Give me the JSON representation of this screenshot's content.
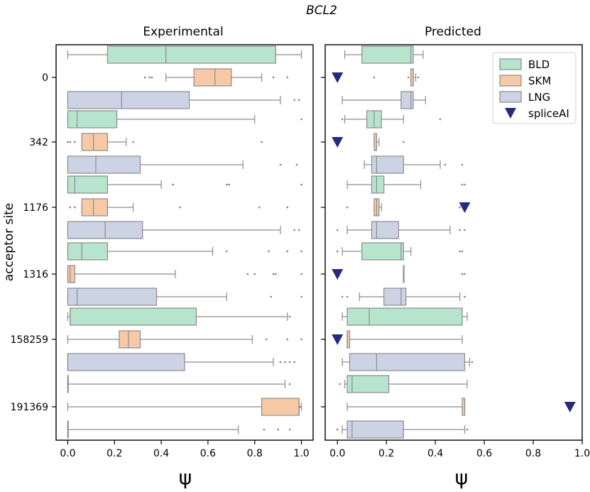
{
  "chart_data": {
    "type": "boxplot",
    "title": "BCL2",
    "ylabel": "acceptor site",
    "categories": [
      "0",
      "342",
      "1176",
      "1316",
      "158259",
      "191369"
    ],
    "legend": {
      "position": "top-right",
      "entries": [
        {
          "name": "BLD",
          "color": "#b7e4cc",
          "marker": "box"
        },
        {
          "name": "SKM",
          "color": "#f7c9a6",
          "marker": "box"
        },
        {
          "name": "LNG",
          "color": "#ccd3e4",
          "marker": "box"
        },
        {
          "name": "spliceAI",
          "color": "#262a80",
          "marker": "triangle-down"
        }
      ]
    },
    "panels": [
      {
        "name": "Experimental",
        "xlabel": "ψ",
        "xlim": [
          -0.05,
          1.05
        ],
        "xticks": [
          0.0,
          0.2,
          0.4,
          0.6,
          0.8,
          1.0
        ],
        "xtick_labels": [
          "0.0",
          "0.2",
          "0.4",
          "0.6",
          "0.8",
          "1.0"
        ],
        "groups": [
          {
            "site": "0",
            "boxes": [
              {
                "series": "BLD",
                "whisker_low": 0.0,
                "q1": 0.17,
                "median": 0.42,
                "q3": 0.89,
                "whisker_high": 1.0,
                "outliers": []
              },
              {
                "series": "SKM",
                "whisker_low": 0.42,
                "q1": 0.54,
                "median": 0.63,
                "q3": 0.7,
                "whisker_high": 0.83,
                "outliers": [
                  0.33,
                  0.35,
                  0.36,
                  0.88,
                  0.94
                ]
              },
              {
                "series": "LNG",
                "whisker_low": 0.0,
                "q1": 0.0,
                "median": 0.23,
                "q3": 0.52,
                "whisker_high": 0.91,
                "outliers": [
                  0.97,
                  0.99
                ]
              }
            ]
          },
          {
            "site": "342",
            "boxes": [
              {
                "series": "BLD",
                "whisker_low": 0.0,
                "q1": 0.0,
                "median": 0.04,
                "q3": 0.21,
                "whisker_high": 0.8,
                "outliers": [
                  1.0
                ]
              },
              {
                "series": "SKM",
                "whisker_low": 0.06,
                "q1": 0.06,
                "median": 0.11,
                "q3": 0.17,
                "whisker_high": 0.25,
                "outliers": [
                  0.0,
                  0.01,
                  0.03,
                  0.28,
                  0.83
                ]
              },
              {
                "series": "LNG",
                "whisker_low": 0.0,
                "q1": 0.0,
                "median": 0.12,
                "q3": 0.31,
                "whisker_high": 0.75,
                "outliers": [
                  0.91,
                  0.98
                ]
              }
            ]
          },
          {
            "site": "1176",
            "boxes": [
              {
                "series": "BLD",
                "whisker_low": 0.0,
                "q1": 0.0,
                "median": 0.03,
                "q3": 0.17,
                "whisker_high": 0.4,
                "outliers": [
                  0.45,
                  0.68,
                  0.69,
                  1.0
                ]
              },
              {
                "series": "SKM",
                "whisker_low": 0.06,
                "q1": 0.06,
                "median": 0.11,
                "q3": 0.17,
                "whisker_high": 0.28,
                "outliers": [
                  0.01,
                  0.03,
                  0.48,
                  0.82,
                  0.94
                ]
              },
              {
                "series": "LNG",
                "whisker_low": 0.0,
                "q1": 0.0,
                "median": 0.16,
                "q3": 0.32,
                "whisker_high": 0.91,
                "outliers": [
                  0.97,
                  0.99
                ]
              }
            ]
          },
          {
            "site": "1316",
            "boxes": [
              {
                "series": "BLD",
                "whisker_low": 0.0,
                "q1": 0.0,
                "median": 0.06,
                "q3": 0.17,
                "whisker_high": 0.62,
                "outliers": [
                  0.68,
                  0.86,
                  0.94,
                  1.0
                ]
              },
              {
                "series": "SKM",
                "whisker_low": 0.0,
                "q1": 0.0,
                "median": 0.01,
                "q3": 0.03,
                "whisker_high": 0.46,
                "outliers": [
                  0.77,
                  0.8,
                  0.88,
                  0.89,
                  1.0
                ]
              },
              {
                "series": "LNG",
                "whisker_low": 0.0,
                "q1": 0.0,
                "median": 0.04,
                "q3": 0.38,
                "whisker_high": 0.68,
                "outliers": [
                  0.87,
                  1.0
                ]
              }
            ]
          },
          {
            "site": "158259",
            "boxes": [
              {
                "series": "BLD",
                "whisker_low": 0.0,
                "q1": 0.01,
                "median": 0.01,
                "q3": 0.55,
                "whisker_high": 0.94,
                "outliers": [
                  0.95
                ]
              },
              {
                "series": "SKM",
                "whisker_low": 0.0,
                "q1": 0.22,
                "median": 0.26,
                "q3": 0.31,
                "whisker_high": 0.79,
                "outliers": [
                  0.85,
                  0.94,
                  1.0
                ]
              },
              {
                "series": "LNG",
                "whisker_low": 0.0,
                "q1": 0.0,
                "median": 0.0,
                "q3": 0.5,
                "whisker_high": 0.88,
                "outliers": [
                  0.91,
                  0.93,
                  0.95,
                  0.97
                ]
              }
            ]
          },
          {
            "site": "191369",
            "boxes": [
              {
                "series": "BLD",
                "whisker_low": 0.0,
                "q1": 0.0,
                "median": 0.0,
                "q3": 0.0,
                "whisker_high": 0.93,
                "outliers": [
                  0.95
                ]
              },
              {
                "series": "SKM",
                "whisker_low": 0.0,
                "q1": 0.83,
                "median": 0.99,
                "q3": 0.99,
                "whisker_high": 1.0,
                "outliers": [
                  0.995
                ]
              },
              {
                "series": "LNG",
                "whisker_low": 0.0,
                "q1": 0.0,
                "median": 0.0,
                "q3": 0.0,
                "whisker_high": 0.73,
                "outliers": [
                  0.84,
                  0.9,
                  0.95
                ]
              }
            ]
          }
        ]
      },
      {
        "name": "Predicted",
        "xlabel": "ψ",
        "xlim": [
          -0.05,
          1.0
        ],
        "xticks": [
          0.0,
          0.2,
          0.4,
          0.6,
          0.8,
          1.0
        ],
        "xtick_labels": [
          "0.0",
          "0.2",
          "0.4",
          "0.6",
          "0.8",
          "1.0"
        ],
        "groups": [
          {
            "site": "0",
            "spliceAI": 0.0,
            "boxes": [
              {
                "series": "BLD",
                "whisker_low": 0.03,
                "q1": 0.1,
                "median": 0.3,
                "q3": 0.31,
                "whisker_high": 0.35,
                "outliers": []
              },
              {
                "series": "SKM",
                "whisker_low": 0.3,
                "q1": 0.3,
                "median": 0.31,
                "q3": 0.31,
                "whisker_high": 0.32,
                "outliers": [
                  0.15,
                  0.29,
                  0.33
                ]
              },
              {
                "series": "LNG",
                "whisker_low": 0.02,
                "q1": 0.26,
                "median": 0.3,
                "q3": 0.31,
                "whisker_high": 0.36,
                "outliers": []
              }
            ]
          },
          {
            "site": "342",
            "spliceAI": 0.0,
            "boxes": [
              {
                "series": "BLD",
                "whisker_low": 0.03,
                "q1": 0.12,
                "median": 0.15,
                "q3": 0.18,
                "whisker_high": 0.27,
                "outliers": [
                  0.02,
                  0.42
                ]
              },
              {
                "series": "SKM",
                "whisker_low": 0.15,
                "q1": 0.15,
                "median": 0.16,
                "q3": 0.16,
                "whisker_high": 0.17,
                "outliers": [
                  0.27
                ]
              },
              {
                "series": "LNG",
                "whisker_low": 0.11,
                "q1": 0.14,
                "median": 0.16,
                "q3": 0.27,
                "whisker_high": 0.42,
                "outliers": [
                  0.44,
                  0.51
                ]
              }
            ]
          },
          {
            "site": "1176",
            "spliceAI": 0.52,
            "boxes": [
              {
                "series": "BLD",
                "whisker_low": 0.04,
                "q1": 0.14,
                "median": 0.16,
                "q3": 0.19,
                "whisker_high": 0.34,
                "outliers": [
                  0.51,
                  0.52
                ]
              },
              {
                "series": "SKM",
                "whisker_low": 0.15,
                "q1": 0.15,
                "median": 0.16,
                "q3": 0.17,
                "whisker_high": 0.18,
                "outliers": [
                  0.04,
                  0.5,
                  0.52
                ]
              },
              {
                "series": "LNG",
                "whisker_low": 0.04,
                "q1": 0.14,
                "median": 0.16,
                "q3": 0.25,
                "whisker_high": 0.46,
                "outliers": [
                  0.0,
                  0.5,
                  0.52
                ]
              }
            ]
          },
          {
            "site": "1316",
            "spliceAI": 0.0,
            "boxes": [
              {
                "series": "BLD",
                "whisker_low": 0.02,
                "q1": 0.1,
                "median": 0.26,
                "q3": 0.27,
                "whisker_high": 0.3,
                "outliers": [
                  0.0,
                  0.5,
                  0.51
                ]
              },
              {
                "series": "SKM",
                "whisker_low": 0.27,
                "q1": 0.27,
                "median": 0.27,
                "q3": 0.27,
                "whisker_high": 0.27,
                "outliers": [
                  0.51,
                  0.52
                ]
              },
              {
                "series": "LNG",
                "whisker_low": 0.09,
                "q1": 0.19,
                "median": 0.26,
                "q3": 0.28,
                "whisker_high": 0.5,
                "outliers": [
                  0.02,
                  0.04,
                  0.52
                ]
              }
            ]
          },
          {
            "site": "158259",
            "spliceAI": 0.0,
            "boxes": [
              {
                "series": "BLD",
                "whisker_low": 0.02,
                "q1": 0.04,
                "median": 0.13,
                "q3": 0.51,
                "whisker_high": 0.53,
                "outliers": []
              },
              {
                "series": "SKM",
                "whisker_low": 0.04,
                "q1": 0.04,
                "median": 0.04,
                "q3": 0.05,
                "whisker_high": 0.51,
                "outliers": [
                  0.0
                ]
              },
              {
                "series": "LNG",
                "whisker_low": 0.02,
                "q1": 0.05,
                "median": 0.16,
                "q3": 0.52,
                "whisker_high": 0.54,
                "outliers": [
                  0.55
                ]
              }
            ]
          },
          {
            "site": "191369",
            "spliceAI": 0.95,
            "boxes": [
              {
                "series": "BLD",
                "whisker_low": 0.03,
                "q1": 0.04,
                "median": 0.06,
                "q3": 0.21,
                "whisker_high": 0.53,
                "outliers": [
                  0.01
                ]
              },
              {
                "series": "SKM",
                "whisker_low": 0.04,
                "q1": 0.51,
                "median": 0.52,
                "q3": 0.52,
                "whisker_high": 0.52,
                "outliers": []
              },
              {
                "series": "LNG",
                "whisker_low": 0.02,
                "q1": 0.04,
                "median": 0.06,
                "q3": 0.27,
                "whisker_high": 0.52,
                "outliers": [
                  0.0,
                  0.53
                ]
              }
            ]
          }
        ]
      }
    ]
  }
}
